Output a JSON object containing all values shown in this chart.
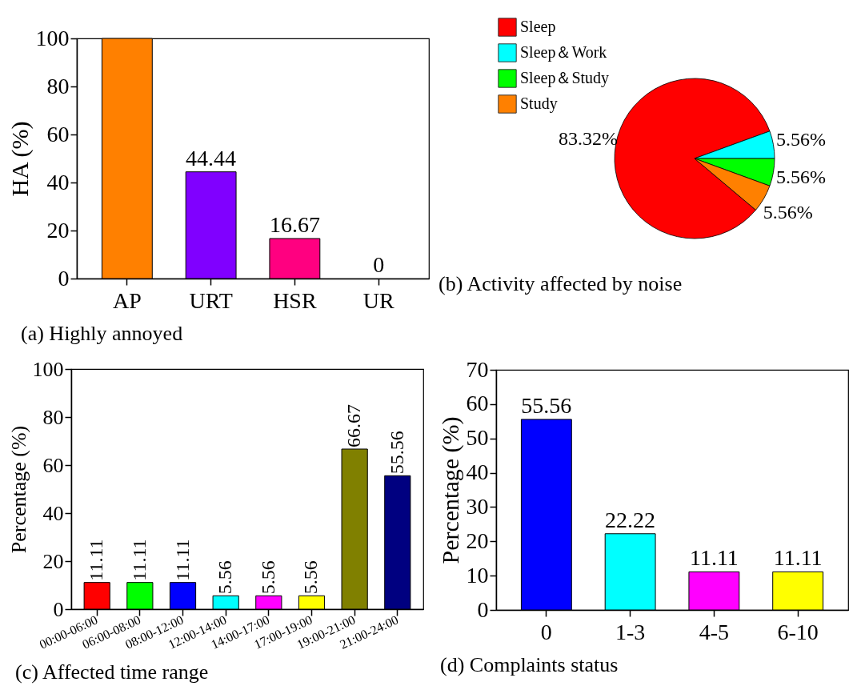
{
  "chart_data": [
    {
      "type": "bar",
      "title": "(a) Highly annoyed",
      "ylabel": "HA (%)",
      "categories": [
        "AP",
        "URT",
        "HSR",
        "UR"
      ],
      "values": [
        100,
        44.44,
        16.67,
        0
      ],
      "colors": [
        "#ff8000",
        "#8000ff",
        "#ff0080",
        "#808080"
      ],
      "value_labels": [
        null,
        "44.44",
        "16.67",
        "0"
      ],
      "ylim": [
        0,
        100
      ],
      "yticks": [
        0,
        20,
        40,
        60,
        80,
        100
      ]
    },
    {
      "type": "pie",
      "title": "(b) Activity affected by noise",
      "categories": [
        "Sleep",
        "Sleep＆Work",
        "Sleep＆Study",
        "Study"
      ],
      "values": [
        83.32,
        5.56,
        5.56,
        5.56
      ],
      "colors": [
        "#ff0000",
        "#00ffff",
        "#00ff00",
        "#ff8000"
      ],
      "value_labels": [
        "83.32%",
        "5.56%",
        "5.56%",
        "5.56%"
      ],
      "legend": "top left"
    },
    {
      "type": "bar",
      "title": "(c) Affected time range",
      "ylabel": "Percentage (%)",
      "categories": [
        "00:00-06:00",
        "06:00-08:00",
        "08:00-12:00",
        "12:00-14:00",
        "14:00-17:00",
        "17:00-19:00",
        "19:00-21:00",
        "21:00-24:00"
      ],
      "values": [
        11.11,
        11.11,
        11.11,
        5.56,
        5.56,
        5.56,
        66.67,
        55.56
      ],
      "colors": [
        "#ff0000",
        "#00ff00",
        "#0000ff",
        "#00ffff",
        "#ff00ff",
        "#ffff00",
        "#808000",
        "#000080"
      ],
      "data_labels": true,
      "ylim": [
        0,
        100
      ],
      "yticks": [
        0,
        20,
        40,
        60,
        80,
        100
      ]
    },
    {
      "type": "bar",
      "title": "(d) Complaints status",
      "ylabel": "Percentage (%)",
      "categories": [
        "0",
        "1-3",
        "4-5",
        "6-10"
      ],
      "values": [
        55.56,
        22.22,
        11.11,
        11.11
      ],
      "colors": [
        "#0000ff",
        "#00ffff",
        "#ff00ff",
        "#ffff00"
      ],
      "data_labels": true,
      "ylim": [
        0,
        70
      ],
      "yticks": [
        0,
        10,
        20,
        30,
        40,
        50,
        60,
        70
      ]
    }
  ]
}
